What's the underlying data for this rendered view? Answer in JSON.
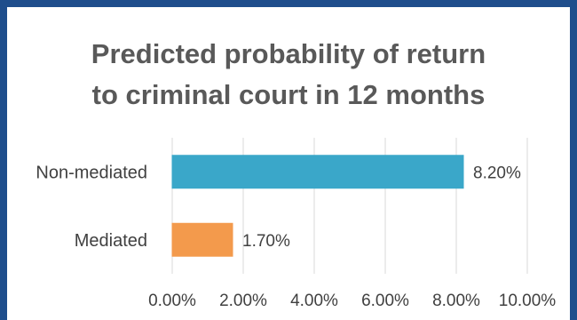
{
  "chart_data": {
    "type": "bar",
    "orientation": "horizontal",
    "title": "Predicted probability of return to criminal court in 12 months",
    "title_lines": [
      "Predicted probability of return",
      "to criminal court in 12 months"
    ],
    "categories": [
      "Non-mediated",
      "Mediated"
    ],
    "values": [
      8.2,
      1.7
    ],
    "data_labels": [
      "8.20%",
      "1.70%"
    ],
    "bar_colors": [
      "#3aa7c9",
      "#f39a4c"
    ],
    "xlabel": "",
    "ylabel": "",
    "xlim": [
      0,
      10
    ],
    "x_ticks": [
      0,
      2,
      4,
      6,
      8,
      10
    ],
    "x_tick_labels": [
      "0.00%",
      "2.00%",
      "4.00%",
      "6.00%",
      "8.00%",
      "10.00%"
    ],
    "grid": "vertical",
    "legend": "none"
  },
  "colors": {
    "border": "#1f4e8c",
    "background": "#ffffff",
    "title": "#595959",
    "text": "#404040",
    "grid": "#d9d9d9"
  }
}
